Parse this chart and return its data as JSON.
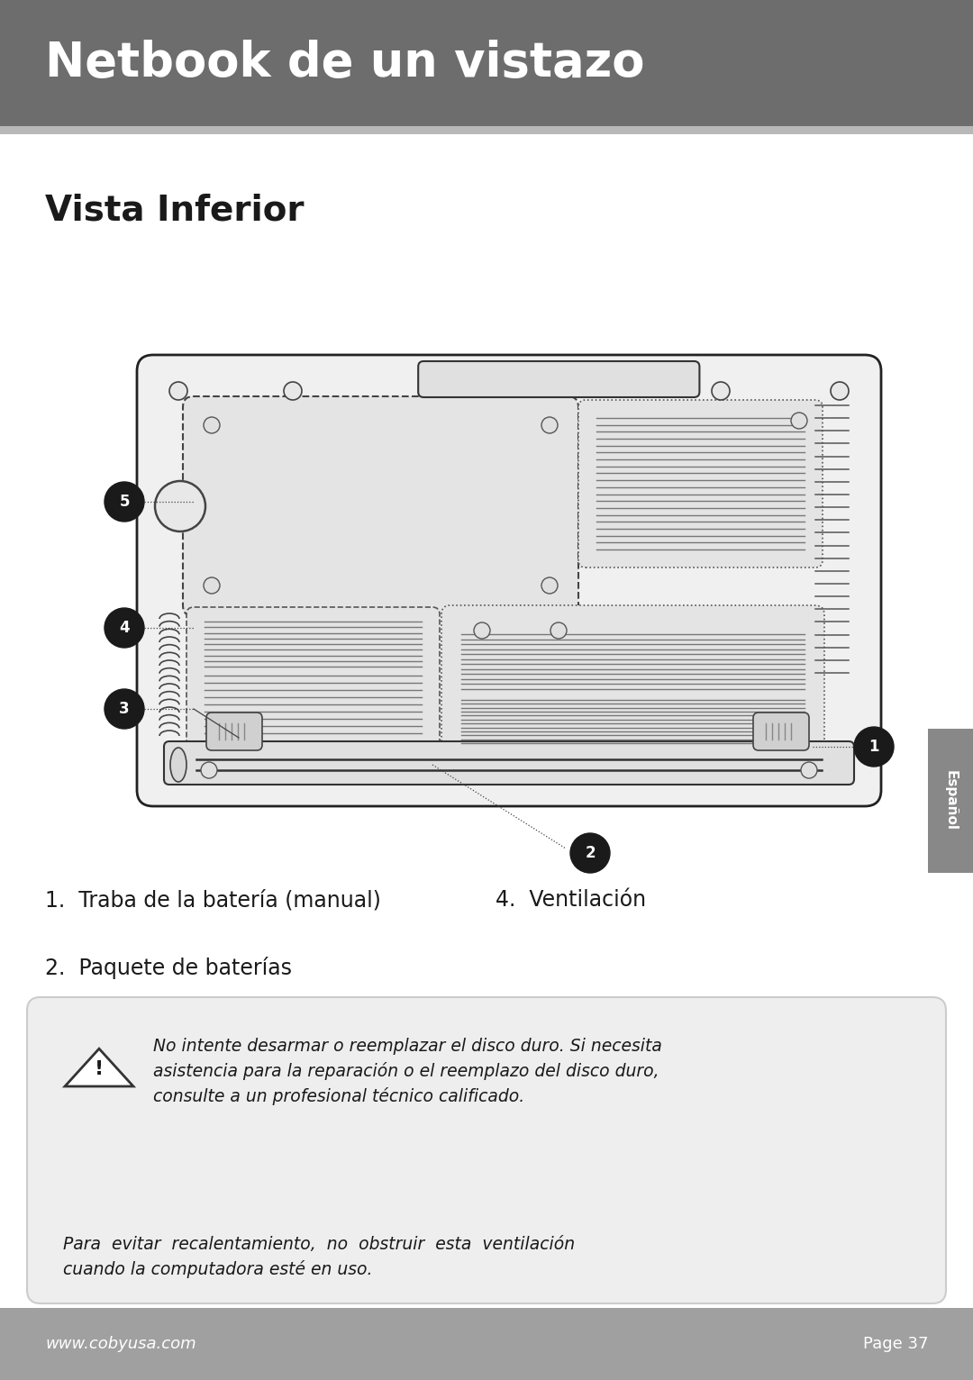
{
  "header_bg": "#6d6d6d",
  "header_text": "Netbook de un vistazo",
  "header_text_color": "#ffffff",
  "footer_bg": "#a0a0a0",
  "footer_text_left": "www.cobyusa.com",
  "footer_text_right": "Page 37",
  "footer_text_color": "#ffffff",
  "section_title": "Vista Inferior",
  "section_title_color": "#1a1a1a",
  "page_bg": "#ffffff",
  "sidebar_bg": "#888888",
  "sidebar_text": "Español",
  "sidebar_text_color": "#ffffff",
  "warning_text1": "No intente desarmar o reemplazar el disco duro. Si necesita\nasistencia para la reparación o el reemplazo del disco duro,\nconsulte a un profesional técnico calificado.",
  "warning_text2": "Para  evitar  recalentamiento,  no  obstruir  esta  ventilación\ncuando la computadora esté en uso."
}
